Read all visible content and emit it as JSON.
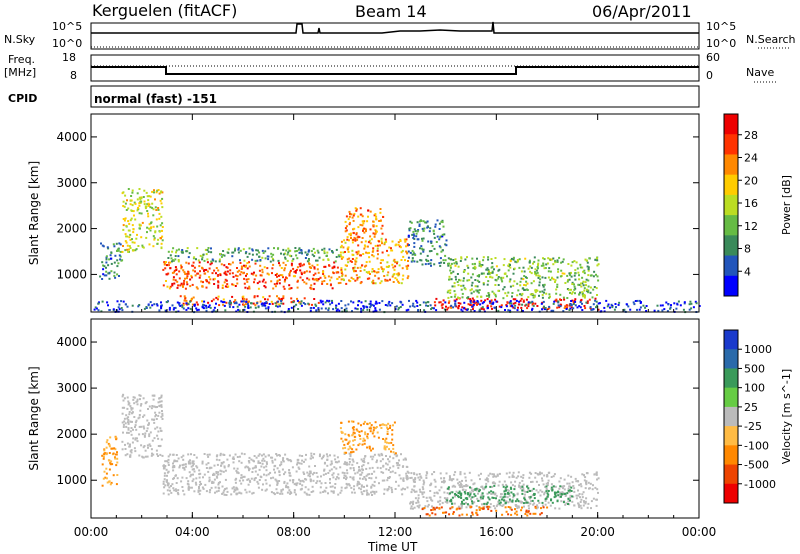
{
  "header": {
    "station": "Kerguelen (fitACF)",
    "beam": "Beam 14",
    "date": "06/Apr/2011"
  },
  "aux": {
    "nsky_label": "N.Sky",
    "nsearch_label": "N.Search",
    "freq_label": "Freq.",
    "freq_unit": "[MHz]",
    "nave_label": "Nave",
    "cpid_label": "CPID",
    "cpid_value": "normal (fast) -151",
    "noise_ticks_left": [
      "10^5",
      "10^0"
    ],
    "noise_ticks_right": [
      "10^5",
      "10^0"
    ],
    "freq_ticks": [
      "18",
      "8"
    ],
    "nave_ticks": [
      "60",
      "0"
    ],
    "colors": {
      "line": "#000000"
    }
  },
  "chart_data": [
    {
      "type": "heatmap",
      "panel": "power",
      "ylabel": "Slant Range [km]",
      "xlabel": "",
      "x_ticks": [
        "00:00",
        "04:00",
        "08:00",
        "12:00",
        "16:00",
        "20:00",
        "00:00"
      ],
      "y_ticks": [
        "1000",
        "2000",
        "3000",
        "4000"
      ],
      "xlim_hours": [
        0,
        24
      ],
      "ylim_km": [
        180,
        4500
      ],
      "colorbar": {
        "label": "Power [dB]",
        "ticks": [
          "4",
          "8",
          "12",
          "16",
          "20",
          "24",
          "28"
        ],
        "range": [
          0,
          30
        ],
        "colors": [
          "#0000ff",
          "#2255bb",
          "#3a8a5a",
          "#66bb44",
          "#bbdd22",
          "#ffcc00",
          "#ff8800",
          "#ff3300",
          "#ee0000"
        ]
      },
      "regions": [
        {
          "t": [
            0.3,
            1.2
          ],
          "r": [
            900,
            1700
          ],
          "v": 8
        },
        {
          "t": [
            1.2,
            2.8
          ],
          "r": [
            1500,
            2900
          ],
          "v": 16
        },
        {
          "t": [
            2.8,
            9.8
          ],
          "r": [
            700,
            1300
          ],
          "v": 24
        },
        {
          "t": [
            3.0,
            9.8
          ],
          "r": [
            1300,
            1600
          ],
          "v": 10
        },
        {
          "t": [
            9.8,
            12.5
          ],
          "r": [
            800,
            1800
          ],
          "v": 20
        },
        {
          "t": [
            10.0,
            11.5
          ],
          "r": [
            1800,
            2500
          ],
          "v": 22
        },
        {
          "t": [
            12.5,
            14.0
          ],
          "r": [
            1200,
            2200
          ],
          "v": 8
        },
        {
          "t": [
            13.5,
            20.0
          ],
          "r": [
            250,
            500
          ],
          "v": 28
        },
        {
          "t": [
            14.0,
            20.0
          ],
          "r": [
            500,
            1400
          ],
          "v": 12
        },
        {
          "t": [
            3.5,
            9.0
          ],
          "r": [
            350,
            550
          ],
          "v": 24
        },
        {
          "t": [
            0.0,
            24.0
          ],
          "r": [
            200,
            450
          ],
          "v": 4
        }
      ]
    },
    {
      "type": "heatmap",
      "panel": "velocity",
      "ylabel": "Slant Range [km]",
      "xlabel": "Time UT",
      "x_ticks": [
        "00:00",
        "04:00",
        "08:00",
        "12:00",
        "16:00",
        "20:00",
        "00:00"
      ],
      "y_ticks": [
        "1000",
        "2000",
        "3000",
        "4000"
      ],
      "xlim_hours": [
        0,
        24
      ],
      "ylim_km": [
        180,
        4500
      ],
      "colorbar": {
        "label": "Velocity [m s^-1]",
        "ticks": [
          "1000",
          "500",
          "100",
          "25",
          "-25",
          "-100",
          "-500",
          "-1000"
        ],
        "colors": [
          "#1a3acc",
          "#2a6aaa",
          "#3a9a5a",
          "#66cc44",
          "#bbbbbb",
          "#ffbb44",
          "#ff8800",
          "#ee4400",
          "#ee0000"
        ]
      },
      "regions": [
        {
          "t": [
            0.4,
            1.0
          ],
          "r": [
            900,
            2000
          ],
          "v": -100
        },
        {
          "t": [
            1.2,
            2.8
          ],
          "r": [
            1500,
            2900
          ],
          "v": 0
        },
        {
          "t": [
            2.8,
            12.5
          ],
          "r": [
            700,
            1600
          ],
          "v": 0
        },
        {
          "t": [
            9.8,
            12.0
          ],
          "r": [
            1600,
            2300
          ],
          "v": -100
        },
        {
          "t": [
            12.5,
            20.0
          ],
          "r": [
            400,
            1200
          ],
          "v": 0
        },
        {
          "t": [
            13.0,
            18.0
          ],
          "r": [
            250,
            450
          ],
          "v": -500
        },
        {
          "t": [
            14.0,
            19.0
          ],
          "r": [
            500,
            900
          ],
          "v": 300
        }
      ]
    }
  ]
}
